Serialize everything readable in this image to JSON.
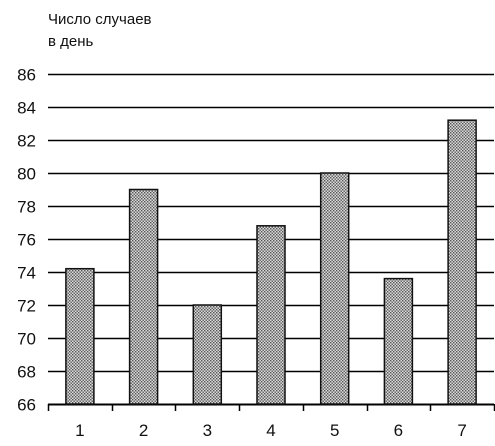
{
  "chart_data": {
    "type": "bar",
    "title_lines": [
      "Число  случаев",
      "в день"
    ],
    "xlabel": "",
    "ylabel": "",
    "categories": [
      "1",
      "2",
      "3",
      "4",
      "5",
      "6",
      "7"
    ],
    "values": [
      74.2,
      79.0,
      72.0,
      76.8,
      80.0,
      73.6,
      83.2
    ],
    "ylim": [
      66,
      86
    ],
    "yticks": [
      66,
      68,
      70,
      72,
      74,
      76,
      78,
      80,
      82,
      84,
      86
    ],
    "grid": "horizontal",
    "legend": "none",
    "colors": {
      "bar_fill": "#8c8c8c",
      "bar_stroke": "#111111",
      "grid": "#000000"
    }
  }
}
